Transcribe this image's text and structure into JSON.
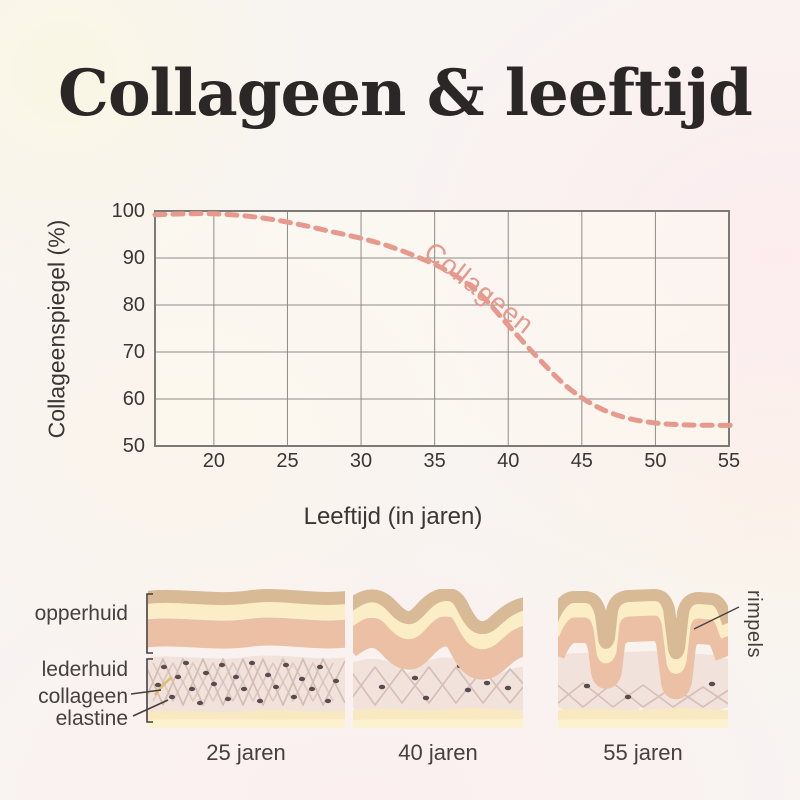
{
  "title": "Collageen & leeftijd",
  "chart_data": {
    "type": "line",
    "title": "",
    "xlabel": "Leeftijd (in jaren)",
    "ylabel": "Collageenspiegel (%)",
    "curve_label": "Collageen",
    "x_ticks": [
      20,
      25,
      30,
      35,
      40,
      45,
      50,
      55
    ],
    "y_ticks": [
      100,
      90,
      80,
      70,
      60,
      50
    ],
    "xlim": [
      16,
      55
    ],
    "ylim": [
      50,
      100
    ],
    "grid": true,
    "legend": "inline-label-on-curve",
    "line_color": "#e6998c",
    "line_style": "dashed",
    "series": [
      {
        "name": "Collageen",
        "points": [
          [
            16,
            99.2
          ],
          [
            18,
            99.4
          ],
          [
            20,
            99.4
          ],
          [
            22,
            99.0
          ],
          [
            24,
            98.2
          ],
          [
            26,
            97.0
          ],
          [
            28,
            95.6
          ],
          [
            30,
            94.2
          ],
          [
            32,
            92.4
          ],
          [
            34,
            90.0
          ],
          [
            36,
            87.0
          ],
          [
            38,
            82.6
          ],
          [
            40,
            75.7
          ],
          [
            42,
            68.8
          ],
          [
            44,
            62.6
          ],
          [
            46,
            58.4
          ],
          [
            48,
            56.0
          ],
          [
            50,
            54.9
          ],
          [
            52,
            54.5
          ],
          [
            54,
            54.4
          ],
          [
            55.4,
            54.4
          ]
        ]
      }
    ]
  },
  "skin_section": {
    "layer_labels": {
      "opperhuid": "opperhuid",
      "lederhuid": "lederhuid",
      "collageen": "collageen",
      "elastine": "elastine"
    },
    "rimpels_label": "rimpels",
    "captions": [
      "25 jaren",
      "40 jaren",
      "55 jaren"
    ]
  },
  "colors": {
    "accent_curve": "#e6998c",
    "title_text": "#2b2726",
    "label_text": "#45403d",
    "grid_line": "#8f8b88",
    "skin_tan": "#d8ba97",
    "skin_cream": "#fbeec6",
    "skin_salmon": "#ecc0a4",
    "skin_dermis": "#f1e2dc",
    "skin_fiber": "#d2bcb3",
    "skin_dot": "#5a4a52",
    "skin_bottom": "#f9e9c0",
    "collagen_highlight": "#dcbf72"
  }
}
